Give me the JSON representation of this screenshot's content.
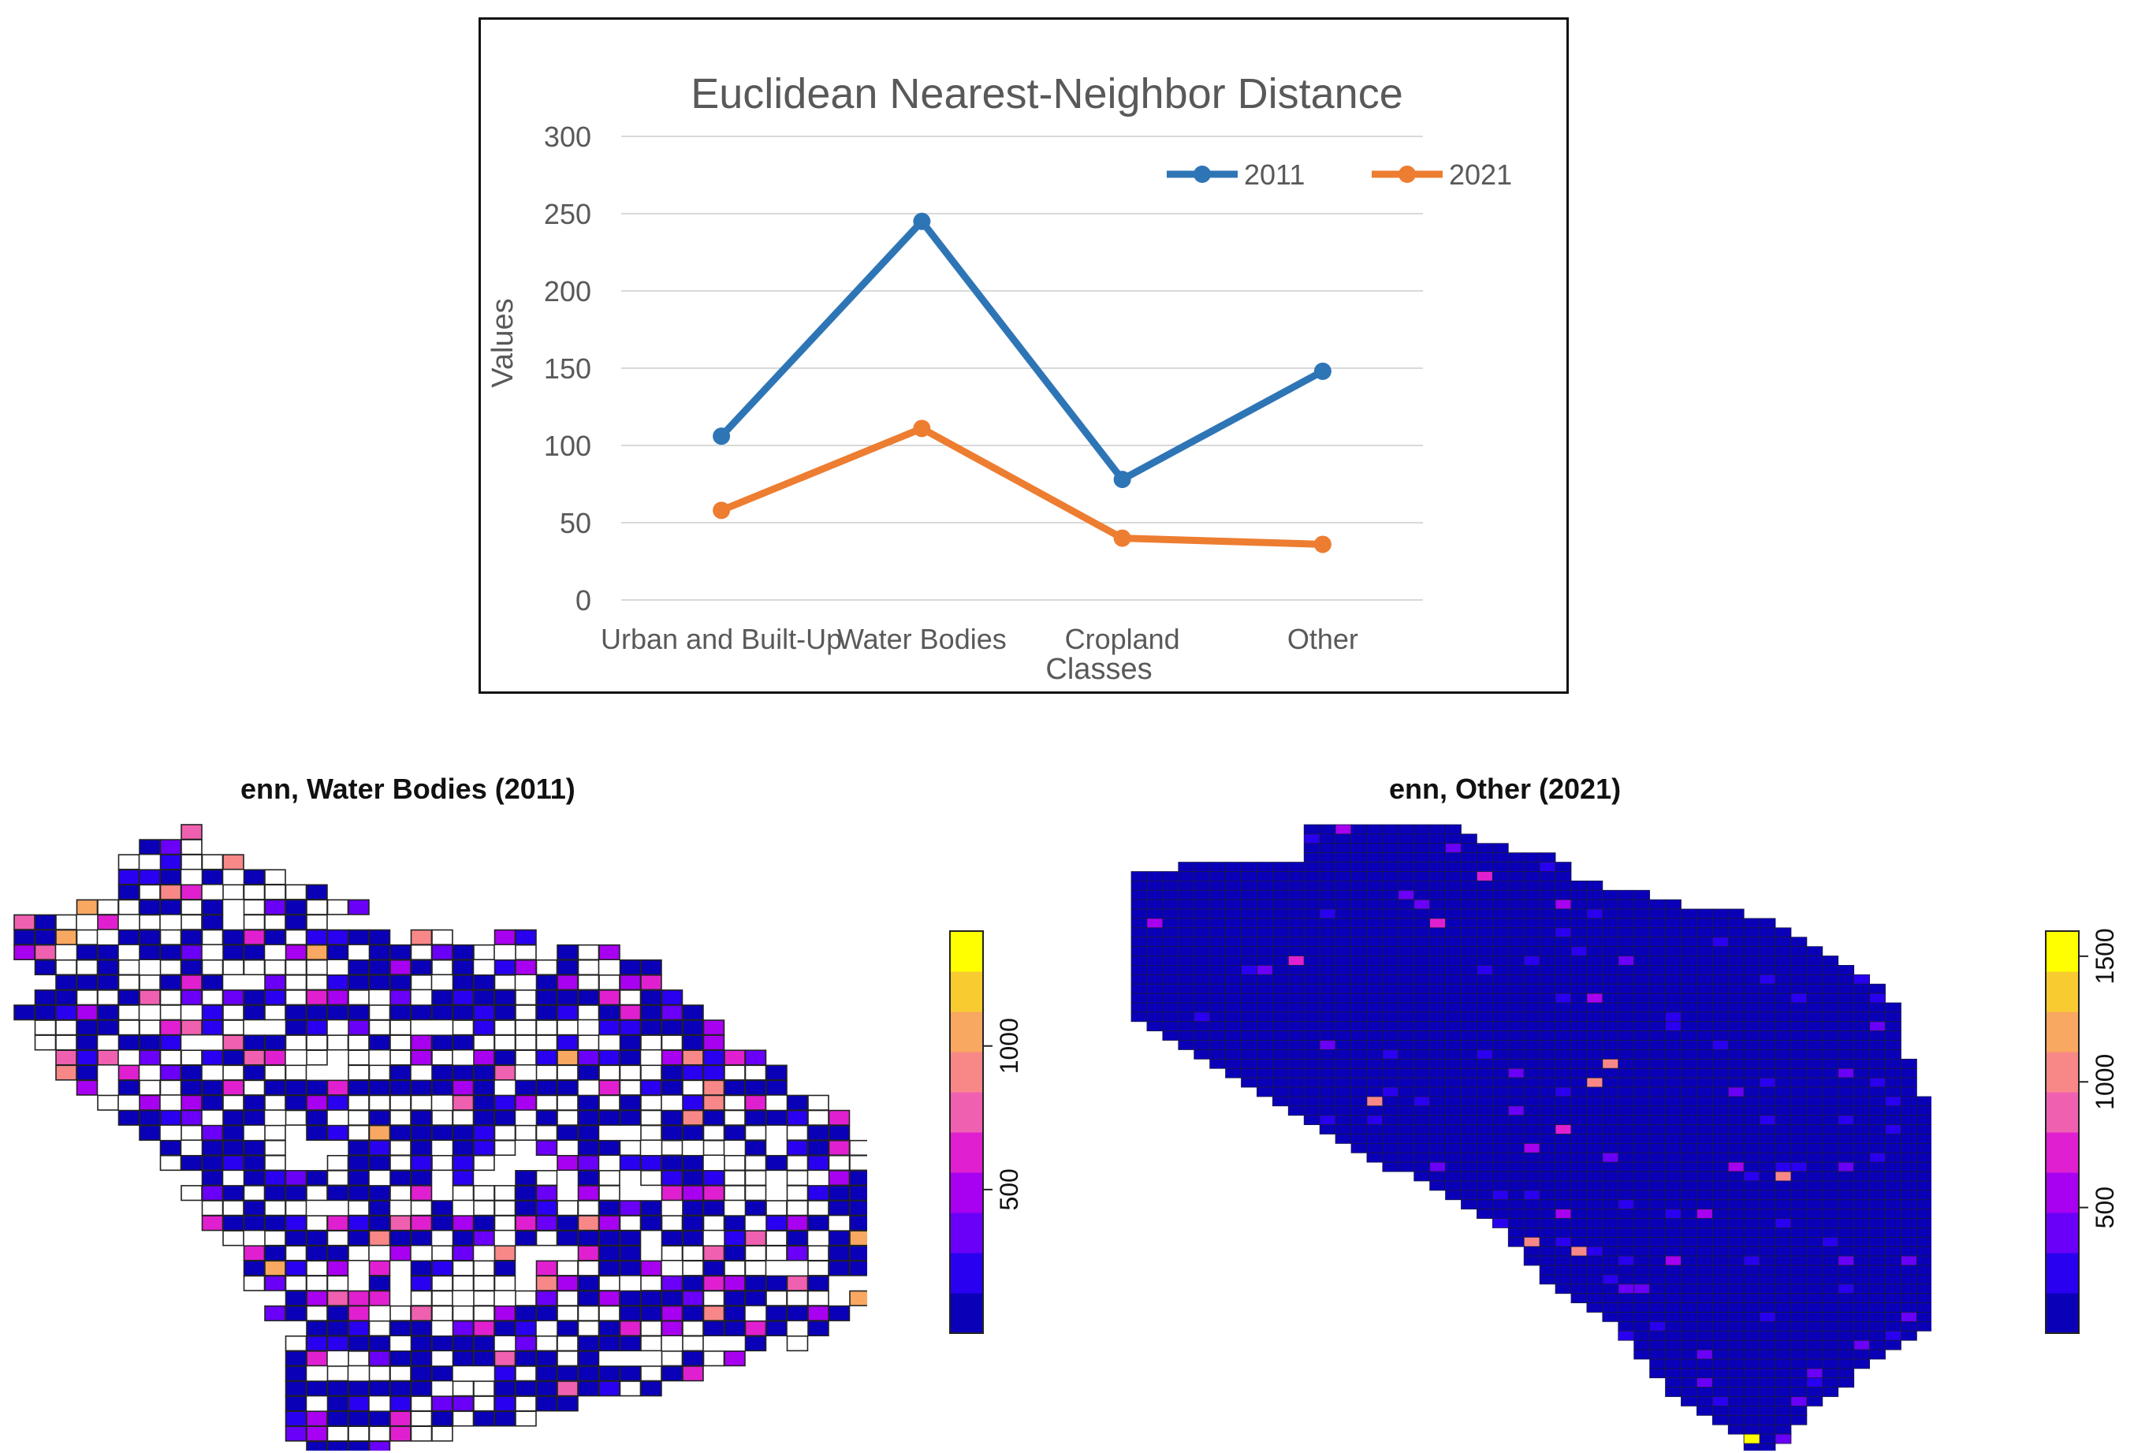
{
  "colors": {
    "series_2011": "#2E75B6",
    "series_2021": "#ED7D31",
    "gridline": "#D9D9D9",
    "text": "#595959"
  },
  "chart_data": [
    {
      "type": "line",
      "title": "Euclidean Nearest-Neighbor Distance",
      "xlabel": "Classes",
      "ylabel": "Values",
      "categories": [
        "Urban and Built-Up",
        "Water Bodies",
        "Cropland",
        "Other"
      ],
      "yticks": [
        "0",
        "50",
        "100",
        "150",
        "200",
        "250",
        "300"
      ],
      "ylim": [
        0,
        300
      ],
      "grid": true,
      "legend": "top-right",
      "series": [
        {
          "name": "2011",
          "color": "#2E75B6",
          "values": [
            106,
            245,
            78,
            148
          ]
        },
        {
          "name": "2021",
          "color": "#ED7D31",
          "values": [
            58,
            111,
            40,
            36
          ]
        }
      ]
    },
    {
      "type": "heatmap",
      "title": "enn, Water Bodies (2011)",
      "colorbar_ticks": [
        "500",
        "1000"
      ],
      "colorbar_range": [
        0,
        1400
      ],
      "colorbar_colors": [
        "#0A00B8",
        "#2A00F0",
        "#6A00F8",
        "#A800F0",
        "#E020D0",
        "#F060B0",
        "#F88888",
        "#F8A860",
        "#F8CC30",
        "#FFFF00"
      ]
    },
    {
      "type": "heatmap",
      "title": "enn, Other (2021)",
      "colorbar_ticks": [
        "500",
        "1000",
        "1500"
      ],
      "colorbar_range": [
        0,
        1600
      ],
      "colorbar_colors": [
        "#0A00B8",
        "#2A00F0",
        "#6A00F8",
        "#A800F0",
        "#E020D0",
        "#F060B0",
        "#F88888",
        "#F8A860",
        "#F8CC30",
        "#FFFF00"
      ]
    }
  ]
}
